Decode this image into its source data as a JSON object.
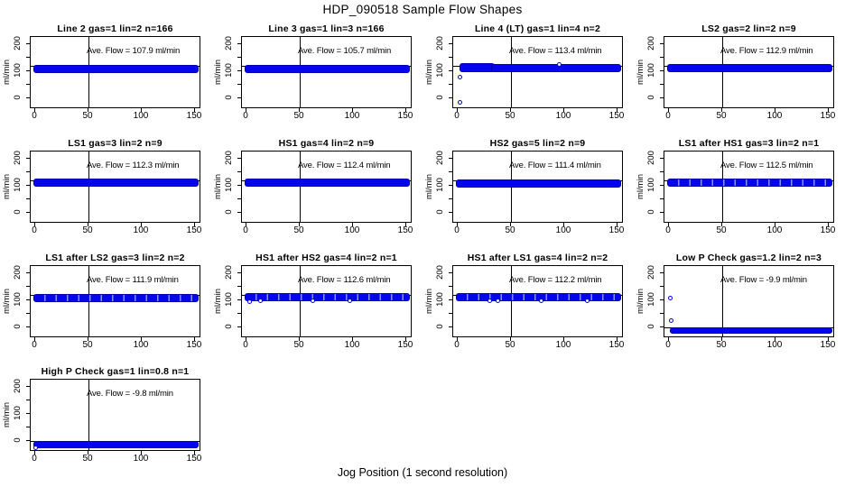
{
  "figure": {
    "title": "HDP_090518  Sample Flow Shapes",
    "xlabel": "Jog Position (1 second resolution)"
  },
  "colors": {
    "point_fill": "#0404ee",
    "point_border": "#0000b0",
    "axis": "#000000",
    "background": "#ffffff"
  },
  "chart_data": {
    "type": "scatter",
    "title": "HDP_090518  Sample Flow Shapes",
    "xlabel": "Jog Position (1 second resolution)",
    "ylabel": "ml/min",
    "xlim": [
      -7,
      157
    ],
    "ylim": [
      -40,
      226
    ],
    "xticks": [
      0,
      50,
      100,
      150
    ],
    "ytick_marks": [
      0,
      50,
      100,
      150,
      200
    ],
    "ytick_labels": [
      0,
      100,
      200
    ],
    "grid": false,
    "legend": "none",
    "vline_x": 50,
    "layout": {
      "columns": 4,
      "rows": 4,
      "panel_count": 13
    },
    "panels": [
      {
        "title": "Line 2 gas=1 lin=2 n=166",
        "ave_flow": 107.9,
        "ave_label": "Ave. Flow =  107.9  ml/min",
        "refline_y": 120,
        "bands": [
          {
            "x": [
              0,
              152
            ],
            "y": [
              100,
              120
            ]
          }
        ],
        "outliers": [],
        "speckled": false
      },
      {
        "title": "Line 3 gas=1 lin=3 n=166",
        "ave_flow": 105.7,
        "ave_label": "Ave. Flow =  105.7  ml/min",
        "refline_y": 120,
        "bands": [
          {
            "x": [
              0,
              152
            ],
            "y": [
              99,
              119
            ]
          }
        ],
        "outliers": [],
        "speckled": false
      },
      {
        "title": "Line 4 (LT) gas=1 lin=4 n=2",
        "ave_flow": 113.4,
        "ave_label": "Ave. Flow =  113.4  ml/min",
        "refline_y": 120,
        "bands": [
          {
            "x": [
              3,
              33
            ],
            "y": [
              104,
              126
            ]
          },
          {
            "x": [
              33,
              152
            ],
            "y": [
              102,
              122
            ]
          }
        ],
        "outliers": [
          [
            2.5,
            78
          ],
          [
            2,
            -15
          ],
          [
            95,
            124
          ]
        ],
        "speckled": false
      },
      {
        "title": "LS2 gas=2 lin=2 n=9",
        "ave_flow": 112.9,
        "ave_label": "Ave. Flow =  112.9  ml/min",
        "refline_y": 120,
        "bands": [
          {
            "x": [
              0,
              152
            ],
            "y": [
              103,
              123
            ]
          }
        ],
        "outliers": [],
        "speckled": false
      },
      {
        "title": "LS1 gas=3 lin=2 n=9",
        "ave_flow": 112.3,
        "ave_label": "Ave. Flow =  112.3  ml/min",
        "refline_y": 120,
        "bands": [
          {
            "x": [
              0,
              152
            ],
            "y": [
              102,
              122
            ]
          }
        ],
        "outliers": [],
        "speckled": false
      },
      {
        "title": "HS1 gas=4 lin=2 n=9",
        "ave_flow": 112.4,
        "ave_label": "Ave. Flow =  112.4  ml/min",
        "refline_y": 120,
        "bands": [
          {
            "x": [
              0,
              152
            ],
            "y": [
              103,
              123
            ]
          }
        ],
        "outliers": [],
        "speckled": false
      },
      {
        "title": "HS2 gas=5 lin=2 n=9",
        "ave_flow": 111.4,
        "ave_label": "Ave. Flow =  111.4  ml/min",
        "refline_y": 120,
        "bands": [
          {
            "x": [
              0,
              152
            ],
            "y": [
              101,
              121
            ]
          }
        ],
        "outliers": [],
        "speckled": false
      },
      {
        "title": "LS1 after HS1 gas=3 lin=2 n=1",
        "ave_flow": 112.5,
        "ave_label": "Ave. Flow =  112.5  ml/min",
        "refline_y": 120,
        "bands": [
          {
            "x": [
              0,
              152
            ],
            "y": [
              103,
              123
            ]
          }
        ],
        "outliers": [],
        "speckled": true
      },
      {
        "title": "LS1 after LS2 gas=3 lin=2 n=2",
        "ave_flow": 111.9,
        "ave_label": "Ave. Flow =  111.9  ml/min",
        "refline_y": 120,
        "bands": [
          {
            "x": [
              0,
              152
            ],
            "y": [
              101,
              121
            ]
          }
        ],
        "outliers": [],
        "speckled": true
      },
      {
        "title": "HS1 after HS2 gas=4 lin=2 n=1",
        "ave_flow": 112.6,
        "ave_label": "Ave. Flow =  112.6  ml/min",
        "refline_y": 120,
        "bands": [
          {
            "x": [
              0,
              152
            ],
            "y": [
              102,
              122
            ]
          }
        ],
        "outliers": [
          [
            3,
            96
          ],
          [
            13,
            97
          ],
          [
            62,
            99
          ],
          [
            97,
            99
          ]
        ],
        "speckled": true
      },
      {
        "title": "HS1 after LS1 gas=4 lin=2 n=2",
        "ave_flow": 112.2,
        "ave_label": "Ave. Flow =  112.2  ml/min",
        "refline_y": 120,
        "bands": [
          {
            "x": [
              0,
              152
            ],
            "y": [
              102,
              122
            ]
          }
        ],
        "outliers": [
          [
            30,
            98
          ],
          [
            38,
            97
          ],
          [
            78,
            99
          ],
          [
            122,
            99
          ]
        ],
        "speckled": true
      },
      {
        "title": "Low P Check gas=1.2 lin=2 n=3",
        "ave_flow": -9.9,
        "ave_label": "Ave. Flow =  -9.9  ml/min",
        "refline_y": 0,
        "bands": [
          {
            "x": [
              2.5,
              152
            ],
            "y": [
              -17,
              -4
            ]
          }
        ],
        "outliers": [
          [
            1,
            110
          ],
          [
            2,
            25
          ]
        ],
        "speckled": false
      },
      {
        "title": "High P Check gas=1 lin=0.8 n=1",
        "ave_flow": -9.8,
        "ave_label": "Ave. Flow =  -9.8  ml/min",
        "refline_y": 0,
        "bands": [
          {
            "x": [
              0,
              152
            ],
            "y": [
              -19,
              -4
            ]
          }
        ],
        "outliers": [
          [
            0.5,
            -24
          ]
        ],
        "speckled": false
      }
    ]
  }
}
